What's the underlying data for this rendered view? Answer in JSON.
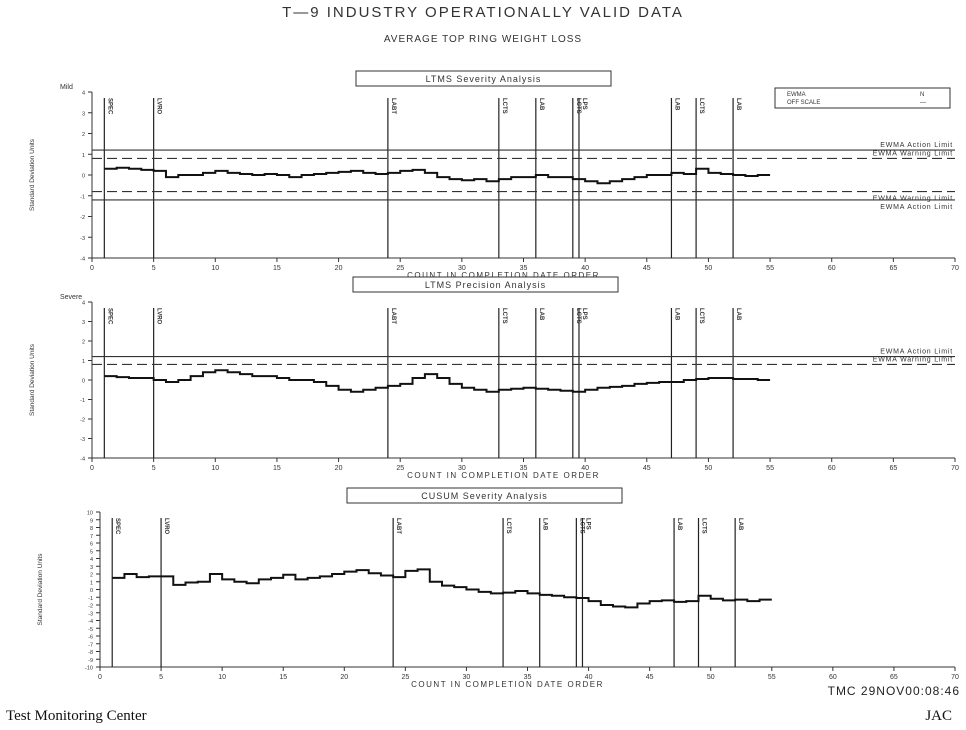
{
  "page": {
    "title": "T—9   INDUSTRY OPERATIONALLY VALID DATA",
    "subtitle": "AVERAGE TOP RING WEIGHT LOSS",
    "footer_left": "Test Monitoring Center",
    "footer_right": "JAC",
    "stamp": "TMC  29NOV00:08:46"
  },
  "chart_data": [
    {
      "type": "line",
      "title": "LTMS Severity Analysis",
      "xlabel": "COUNT IN COMPLETION DATE ORDER",
      "ylabel": "Standard Deviation Units",
      "top_axis_label": "Mild",
      "xlim": [
        0,
        70
      ],
      "x_ticks": [
        0,
        5,
        10,
        15,
        20,
        25,
        30,
        35,
        40,
        45,
        50,
        55,
        60,
        65,
        70
      ],
      "ylim": [
        -4,
        4
      ],
      "y_ticks": [
        4,
        3,
        2,
        1,
        0,
        -1,
        -2,
        -3,
        -4
      ],
      "legend": {
        "position": "top-right",
        "entries": [
          {
            "label": "EWMA",
            "value": "N"
          },
          {
            "label": "OFF SCALE",
            "value": "—"
          }
        ]
      },
      "event_labels": [
        "SPEC",
        "LVRO",
        "LABT",
        "LCTS",
        "LAB",
        "LCTS",
        "LPS",
        "LAB",
        "LCTS",
        "LAB"
      ],
      "event_x": [
        1,
        5,
        24,
        33,
        36,
        39,
        39.5,
        47,
        49,
        52
      ],
      "limits": [
        {
          "label": "EWMA Action Limit",
          "y": 1.2,
          "style": "solid"
        },
        {
          "label": "EWMA Warning Limit",
          "y": 0.8,
          "style": "dashed"
        },
        {
          "label": "EWMA Warning Limit",
          "y": -0.8,
          "style": "dashed"
        },
        {
          "label": "EWMA Action Limit",
          "y": -1.2,
          "style": "solid"
        }
      ],
      "series": [
        {
          "values": [
            [
              1,
              0.3
            ],
            [
              2,
              0.35
            ],
            [
              3,
              0.3
            ],
            [
              4,
              0.25
            ],
            [
              5,
              0.2
            ],
            [
              6,
              -0.1
            ],
            [
              7,
              0.0
            ],
            [
              8,
              0.0
            ],
            [
              9,
              0.1
            ],
            [
              10,
              0.2
            ],
            [
              11,
              0.1
            ],
            [
              12,
              0.05
            ],
            [
              13,
              0.0
            ],
            [
              14,
              0.05
            ],
            [
              15,
              0.0
            ],
            [
              16,
              -0.1
            ],
            [
              17,
              0.0
            ],
            [
              18,
              0.05
            ],
            [
              19,
              0.1
            ],
            [
              20,
              0.15
            ],
            [
              21,
              0.2
            ],
            [
              22,
              0.1
            ],
            [
              23,
              0.05
            ],
            [
              24,
              0.1
            ],
            [
              25,
              0.2
            ],
            [
              26,
              0.25
            ],
            [
              27,
              0.1
            ],
            [
              28,
              -0.1
            ],
            [
              29,
              -0.2
            ],
            [
              30,
              -0.25
            ],
            [
              31,
              -0.2
            ],
            [
              32,
              -0.3
            ],
            [
              33,
              -0.2
            ],
            [
              34,
              -0.1
            ],
            [
              35,
              -0.1
            ],
            [
              36,
              0.0
            ],
            [
              37,
              -0.1
            ],
            [
              38,
              -0.1
            ],
            [
              39,
              -0.2
            ],
            [
              40,
              -0.3
            ],
            [
              41,
              -0.4
            ],
            [
              42,
              -0.3
            ],
            [
              43,
              -0.2
            ],
            [
              44,
              -0.1
            ],
            [
              45,
              0.0
            ],
            [
              46,
              0.0
            ],
            [
              47,
              0.1
            ],
            [
              48,
              0.05
            ],
            [
              49,
              0.3
            ],
            [
              50,
              0.1
            ],
            [
              51,
              0.05
            ],
            [
              52,
              0.0
            ],
            [
              53,
              -0.05
            ],
            [
              54,
              0.0
            ],
            [
              55,
              0.0
            ]
          ]
        }
      ]
    },
    {
      "type": "line",
      "title": "LTMS Precision Analysis",
      "xlabel": "COUNT IN COMPLETION DATE ORDER",
      "ylabel": "Standard Deviation Units",
      "top_axis_label": "Severe",
      "xlim": [
        0,
        70
      ],
      "x_ticks": [
        0,
        5,
        10,
        15,
        20,
        25,
        30,
        35,
        40,
        45,
        50,
        55,
        60,
        65,
        70
      ],
      "ylim": [
        -4,
        4
      ],
      "y_ticks": [
        4,
        3,
        2,
        1,
        0,
        -1,
        -2,
        -3,
        -4
      ],
      "event_labels": [
        "SPEC",
        "LVRO",
        "LABT",
        "LCTS",
        "LAB",
        "LCTS",
        "LPS",
        "LAB",
        "LCTS",
        "LAB"
      ],
      "event_x": [
        1,
        5,
        24,
        33,
        36,
        39,
        39.5,
        47,
        49,
        52
      ],
      "limits": [
        {
          "label": "EWMA Action Limit",
          "y": 1.2,
          "style": "solid"
        },
        {
          "label": "EWMA Warning Limit",
          "y": 0.8,
          "style": "dashed"
        }
      ],
      "series": [
        {
          "values": [
            [
              1,
              0.2
            ],
            [
              2,
              0.15
            ],
            [
              3,
              0.1
            ],
            [
              4,
              0.1
            ],
            [
              5,
              0.0
            ],
            [
              6,
              -0.1
            ],
            [
              7,
              0.0
            ],
            [
              8,
              0.2
            ],
            [
              9,
              0.4
            ],
            [
              10,
              0.5
            ],
            [
              11,
              0.4
            ],
            [
              12,
              0.3
            ],
            [
              13,
              0.2
            ],
            [
              14,
              0.2
            ],
            [
              15,
              0.1
            ],
            [
              16,
              0.0
            ],
            [
              17,
              0.0
            ],
            [
              18,
              -0.1
            ],
            [
              19,
              -0.3
            ],
            [
              20,
              -0.5
            ],
            [
              21,
              -0.6
            ],
            [
              22,
              -0.5
            ],
            [
              23,
              -0.4
            ],
            [
              24,
              -0.3
            ],
            [
              25,
              -0.2
            ],
            [
              26,
              0.1
            ],
            [
              27,
              0.3
            ],
            [
              28,
              0.1
            ],
            [
              29,
              -0.2
            ],
            [
              30,
              -0.4
            ],
            [
              31,
              -0.5
            ],
            [
              32,
              -0.6
            ],
            [
              33,
              -0.5
            ],
            [
              34,
              -0.45
            ],
            [
              35,
              -0.4
            ],
            [
              36,
              -0.45
            ],
            [
              37,
              -0.5
            ],
            [
              38,
              -0.55
            ],
            [
              39,
              -0.6
            ],
            [
              40,
              -0.5
            ],
            [
              41,
              -0.4
            ],
            [
              42,
              -0.35
            ],
            [
              43,
              -0.3
            ],
            [
              44,
              -0.2
            ],
            [
              45,
              -0.15
            ],
            [
              46,
              -0.1
            ],
            [
              47,
              -0.1
            ],
            [
              48,
              0.0
            ],
            [
              49,
              0.05
            ],
            [
              50,
              0.1
            ],
            [
              51,
              0.1
            ],
            [
              52,
              0.05
            ],
            [
              53,
              0.05
            ],
            [
              54,
              0.0
            ],
            [
              55,
              0.0
            ]
          ]
        }
      ]
    },
    {
      "type": "line",
      "title": "CUSUM Severity Analysis",
      "xlabel": "COUNT IN COMPLETION DATE ORDER",
      "ylabel": "Standard Deviation Units",
      "xlim": [
        0,
        70
      ],
      "x_ticks": [
        0,
        5,
        10,
        15,
        20,
        25,
        30,
        35,
        40,
        45,
        50,
        55,
        60,
        65,
        70
      ],
      "ylim": [
        -10,
        10
      ],
      "y_ticks": [
        10,
        9,
        8,
        7,
        6,
        5,
        4,
        3,
        2,
        1,
        0,
        -1,
        -2,
        -3,
        -4,
        -5,
        -6,
        -7,
        -8,
        -9,
        -10
      ],
      "event_labels": [
        "SPEC",
        "LVRO",
        "LABT",
        "LCTS",
        "LAB",
        "LCTS",
        "LPS",
        "LAB",
        "LCTS",
        "LAB"
      ],
      "event_x": [
        1,
        5,
        24,
        33,
        36,
        39,
        39.5,
        47,
        49,
        52
      ],
      "series": [
        {
          "values": [
            [
              1,
              1.5
            ],
            [
              2,
              2.0
            ],
            [
              3,
              1.6
            ],
            [
              4,
              1.7
            ],
            [
              5,
              1.7
            ],
            [
              6,
              0.6
            ],
            [
              7,
              0.9
            ],
            [
              8,
              1.0
            ],
            [
              9,
              2.0
            ],
            [
              10,
              1.3
            ],
            [
              11,
              1.0
            ],
            [
              12,
              0.8
            ],
            [
              13,
              1.3
            ],
            [
              14,
              1.5
            ],
            [
              15,
              1.9
            ],
            [
              16,
              1.3
            ],
            [
              17,
              1.5
            ],
            [
              18,
              1.7
            ],
            [
              19,
              2.0
            ],
            [
              20,
              2.3
            ],
            [
              21,
              2.5
            ],
            [
              22,
              2.1
            ],
            [
              23,
              1.8
            ],
            [
              24,
              1.6
            ],
            [
              25,
              2.4
            ],
            [
              26,
              2.6
            ],
            [
              27,
              1.0
            ],
            [
              28,
              0.5
            ],
            [
              29,
              0.3
            ],
            [
              30,
              0.0
            ],
            [
              31,
              -0.3
            ],
            [
              32,
              -0.5
            ],
            [
              33,
              -0.4
            ],
            [
              34,
              -0.2
            ],
            [
              35,
              -0.5
            ],
            [
              36,
              -0.7
            ],
            [
              37,
              -0.8
            ],
            [
              38,
              -1.0
            ],
            [
              39,
              -1.1
            ],
            [
              40,
              -1.5
            ],
            [
              41,
              -2.0
            ],
            [
              42,
              -2.2
            ],
            [
              43,
              -2.3
            ],
            [
              44,
              -1.8
            ],
            [
              45,
              -1.5
            ],
            [
              46,
              -1.4
            ],
            [
              47,
              -1.6
            ],
            [
              48,
              -1.5
            ],
            [
              49,
              -0.8
            ],
            [
              50,
              -1.2
            ],
            [
              51,
              -1.4
            ],
            [
              52,
              -1.3
            ],
            [
              53,
              -1.5
            ],
            [
              54,
              -1.3
            ],
            [
              55,
              -1.3
            ]
          ]
        }
      ]
    }
  ]
}
